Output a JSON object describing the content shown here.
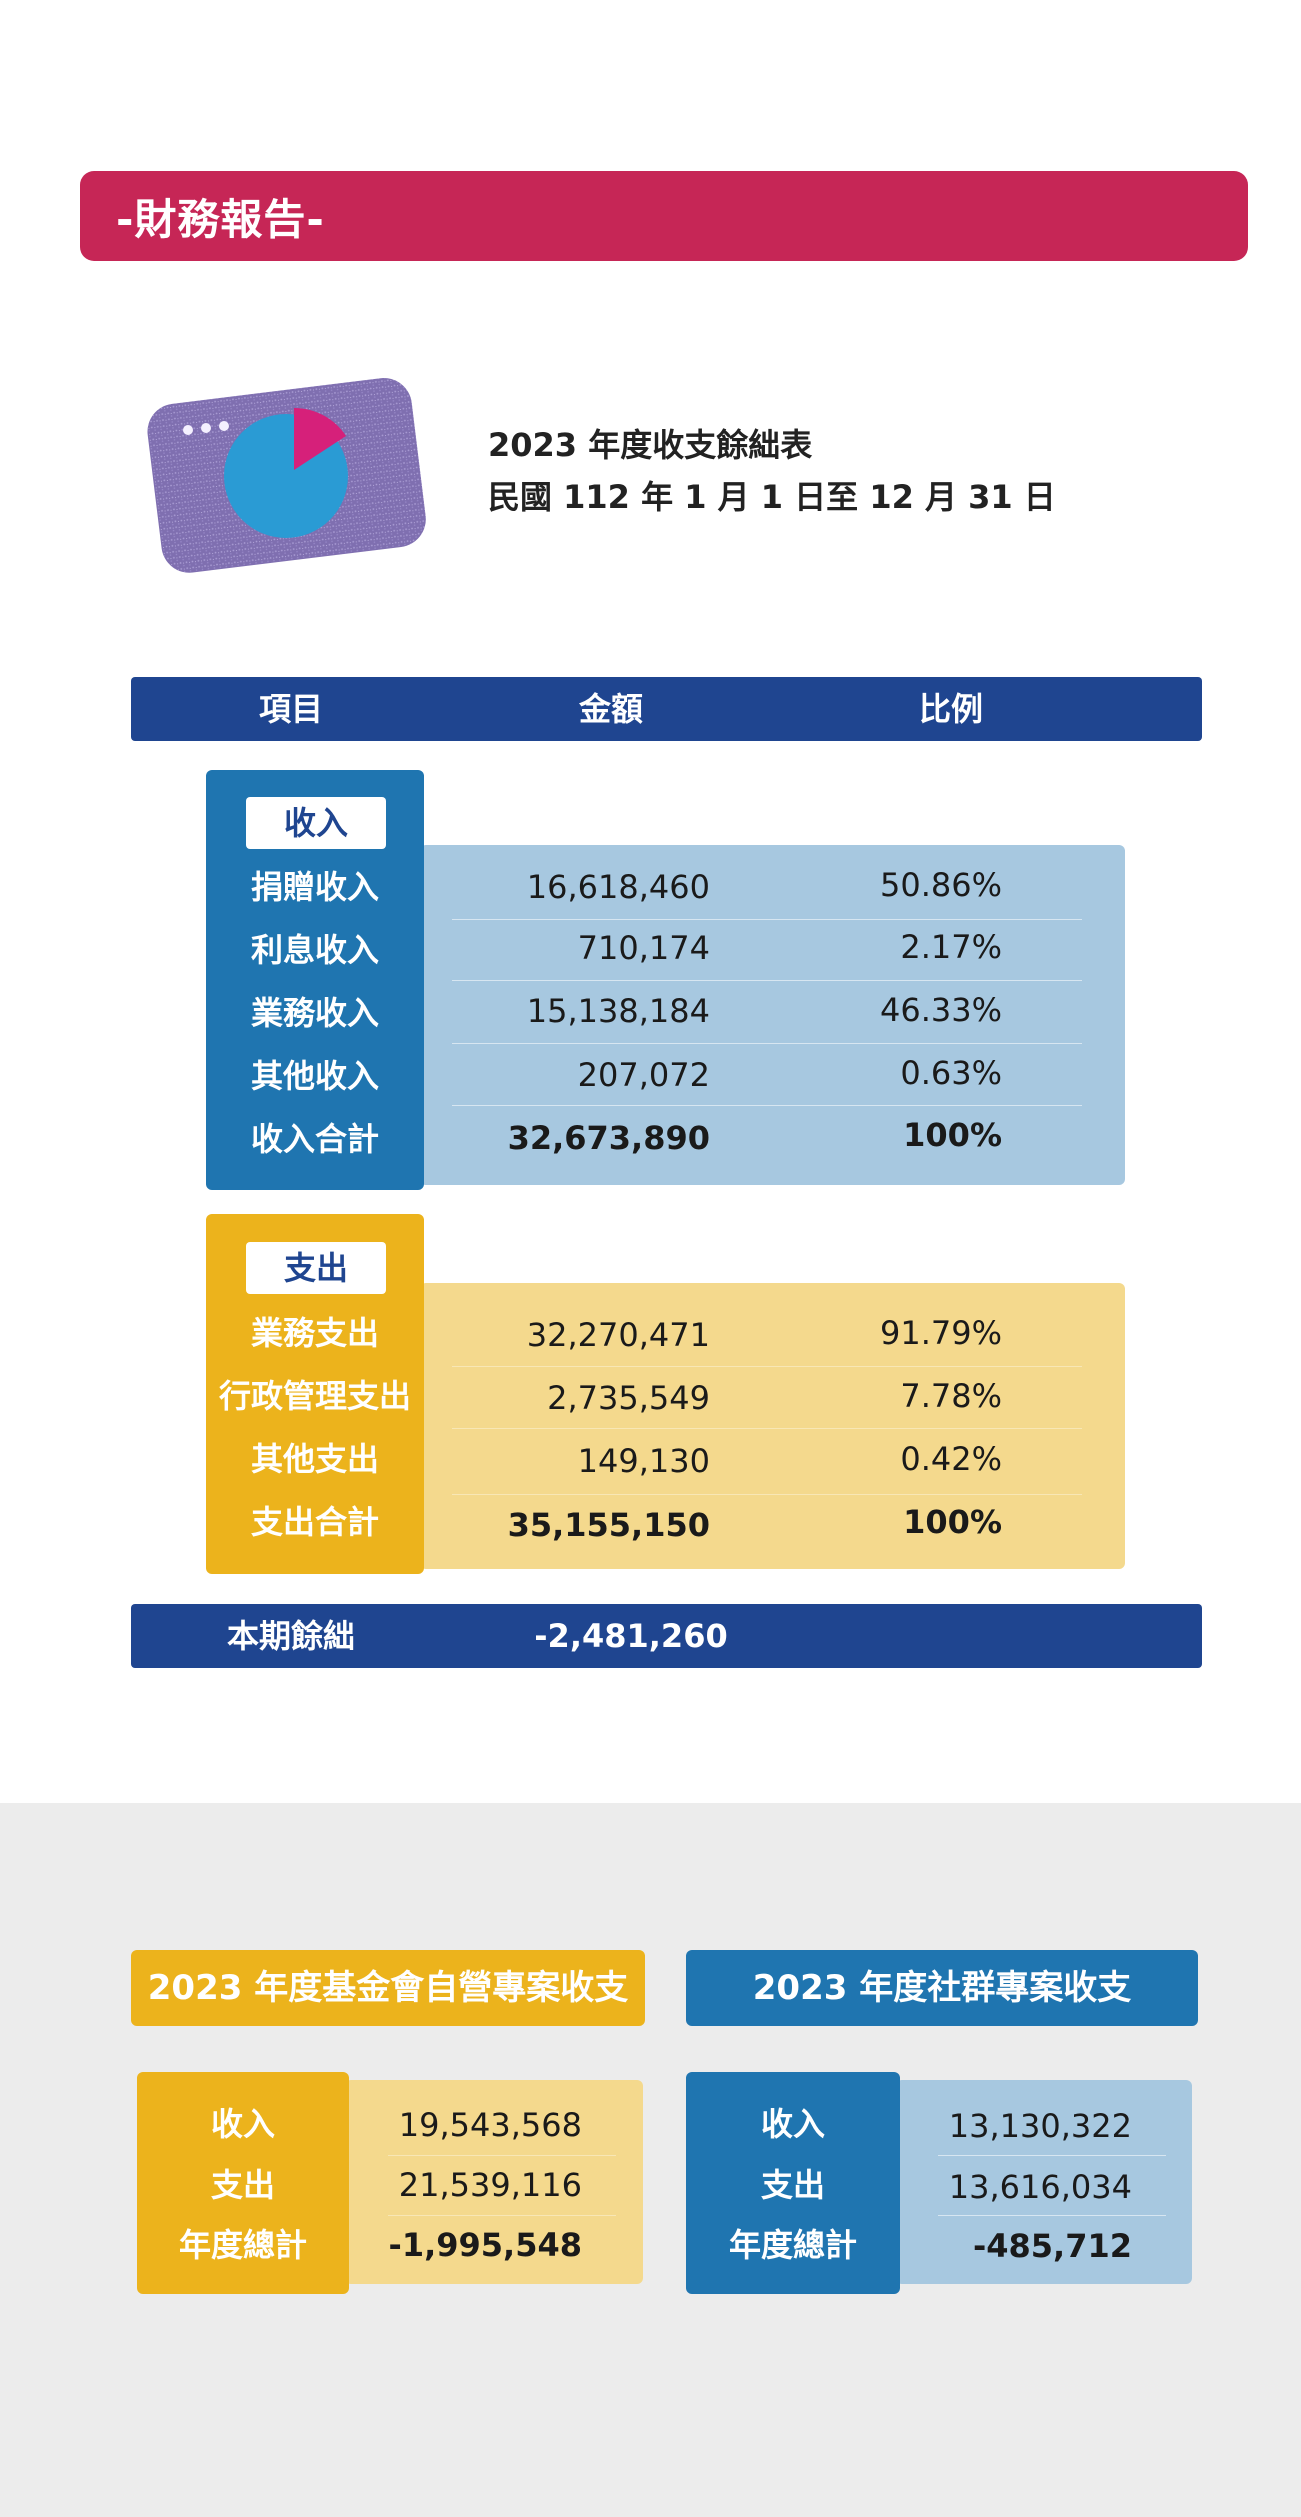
{
  "banner": {
    "title": "-財務報告-"
  },
  "summary": {
    "line1": "2023 年度收支餘絀表",
    "line2": "民國 112 年 1 月 1 日至 12 月 31 日"
  },
  "table_header": {
    "item": "項目",
    "amount": "金額",
    "ratio": "比例"
  },
  "income": {
    "tag": "收入",
    "rows": [
      {
        "label": "捐贈收入",
        "amount": "16,618,460",
        "ratio": "50.86%"
      },
      {
        "label": "利息收入",
        "amount": "710,174",
        "ratio": "2.17%"
      },
      {
        "label": "業務收入",
        "amount": "15,138,184",
        "ratio": "46.33%"
      },
      {
        "label": "其他收入",
        "amount": "207,072",
        "ratio": "0.63%"
      }
    ],
    "total": {
      "label": "收入合計",
      "amount": "32,673,890",
      "ratio": "100%"
    }
  },
  "expense": {
    "tag": "支出",
    "rows": [
      {
        "label": "業務支出",
        "amount": "32,270,471",
        "ratio": "91.79%"
      },
      {
        "label": "行政管理支出",
        "amount": "2,735,549",
        "ratio": "7.78%"
      },
      {
        "label": "其他支出",
        "amount": "149,130",
        "ratio": "0.42%"
      }
    ],
    "total": {
      "label": "支出合計",
      "amount": "35,155,150",
      "ratio": "100%"
    }
  },
  "net": {
    "label": "本期餘絀",
    "amount": "-2,481,260"
  },
  "cards": [
    {
      "title": "2023 年度基金會自營專案收支",
      "rows": [
        {
          "label": "收入",
          "value": "19,543,568"
        },
        {
          "label": "支出",
          "value": "21,539,116"
        },
        {
          "label": "年度總計",
          "value": "-1,995,548"
        }
      ]
    },
    {
      "title": "2023 年度社群專案收支",
      "rows": [
        {
          "label": "收入",
          "value": "13,130,322"
        },
        {
          "label": "支出",
          "value": "13,616,034"
        },
        {
          "label": "年度總計",
          "value": "-485,712"
        }
      ]
    }
  ],
  "colors": {
    "banner": "#c62656",
    "navy": "#1f4590",
    "blue": "#1f75b0",
    "light_blue": "#a7c8e0",
    "gold": "#ecb31c",
    "light_gold": "#f4d98d",
    "purple": "#7f6fb0",
    "pie_blue": "#2a9bd4",
    "pie_pink": "#d6207a"
  },
  "icon": "pie-chart-window-icon"
}
